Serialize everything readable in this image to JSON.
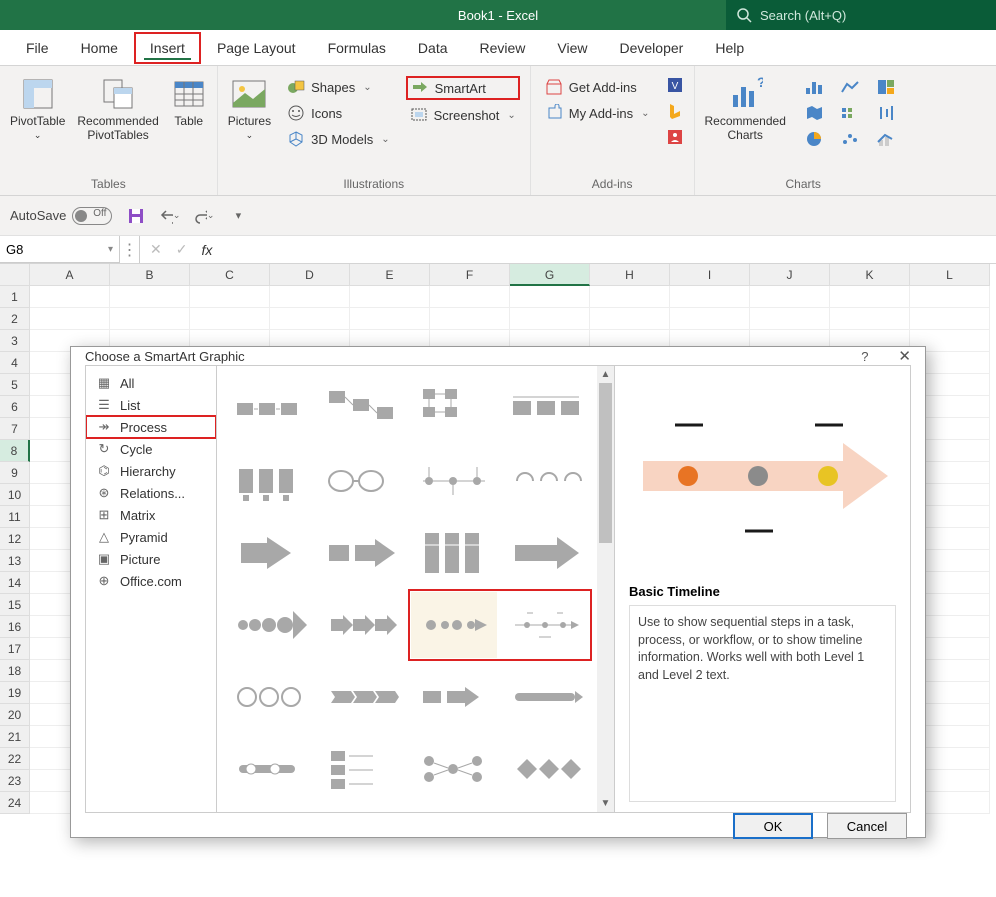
{
  "app": {
    "title": "Book1  -  Excel",
    "search_placeholder": "Search (Alt+Q)"
  },
  "colors": {
    "excel_green": "#217346",
    "search_bg": "#0a5c38",
    "highlight_red": "#d22",
    "ribbon_bg": "#f3f2f1",
    "dialog_border": "#999999"
  },
  "tabs": [
    "File",
    "Home",
    "Insert",
    "Page Layout",
    "Formulas",
    "Data",
    "Review",
    "View",
    "Developer",
    "Help"
  ],
  "active_tab": "Insert",
  "ribbon_groups": {
    "tables": {
      "label": "Tables",
      "items": {
        "pivot": "PivotTable",
        "recommended": "Recommended\nPivotTables",
        "table": "Table"
      }
    },
    "illustrations": {
      "label": "Illustrations",
      "pictures": "Pictures",
      "shapes": "Shapes",
      "icons": "Icons",
      "models": "3D Models",
      "smartart": "SmartArt",
      "screenshot": "Screenshot"
    },
    "addins": {
      "label": "Add-ins",
      "get": "Get Add-ins",
      "my": "My Add-ins"
    },
    "charts": {
      "label": "Charts",
      "recommended": "Recommended\nCharts"
    }
  },
  "autosave_label": "AutoSave",
  "name_box": "G8",
  "columns": [
    "A",
    "B",
    "C",
    "D",
    "E",
    "F",
    "G",
    "H",
    "I",
    "J",
    "K",
    "L"
  ],
  "rows": 24,
  "selected_col": "G",
  "selected_row": 8,
  "dialog": {
    "title": "Choose a SmartArt Graphic",
    "categories": [
      "All",
      "List",
      "Process",
      "Cycle",
      "Hierarchy",
      "Relations...",
      "Matrix",
      "Pyramid",
      "Picture",
      "Office.com"
    ],
    "selected_category": "Process",
    "preview_title": "Basic Timeline",
    "preview_desc": "Use to show sequential steps in a task, process, or workflow, or to show timeline information. Works well with both Level 1 and Level 2 text.",
    "ok": "OK",
    "cancel": "Cancel",
    "help": "?",
    "close": "✕",
    "thumb_count": 24,
    "highlighted_thumbs": [
      14,
      15
    ],
    "preview_colors": {
      "arrow": "#f8d4c2",
      "dot1": "#e87424",
      "dot2": "#8b8b8b",
      "dot3": "#e8c424",
      "line": "#1a1a1a"
    }
  }
}
